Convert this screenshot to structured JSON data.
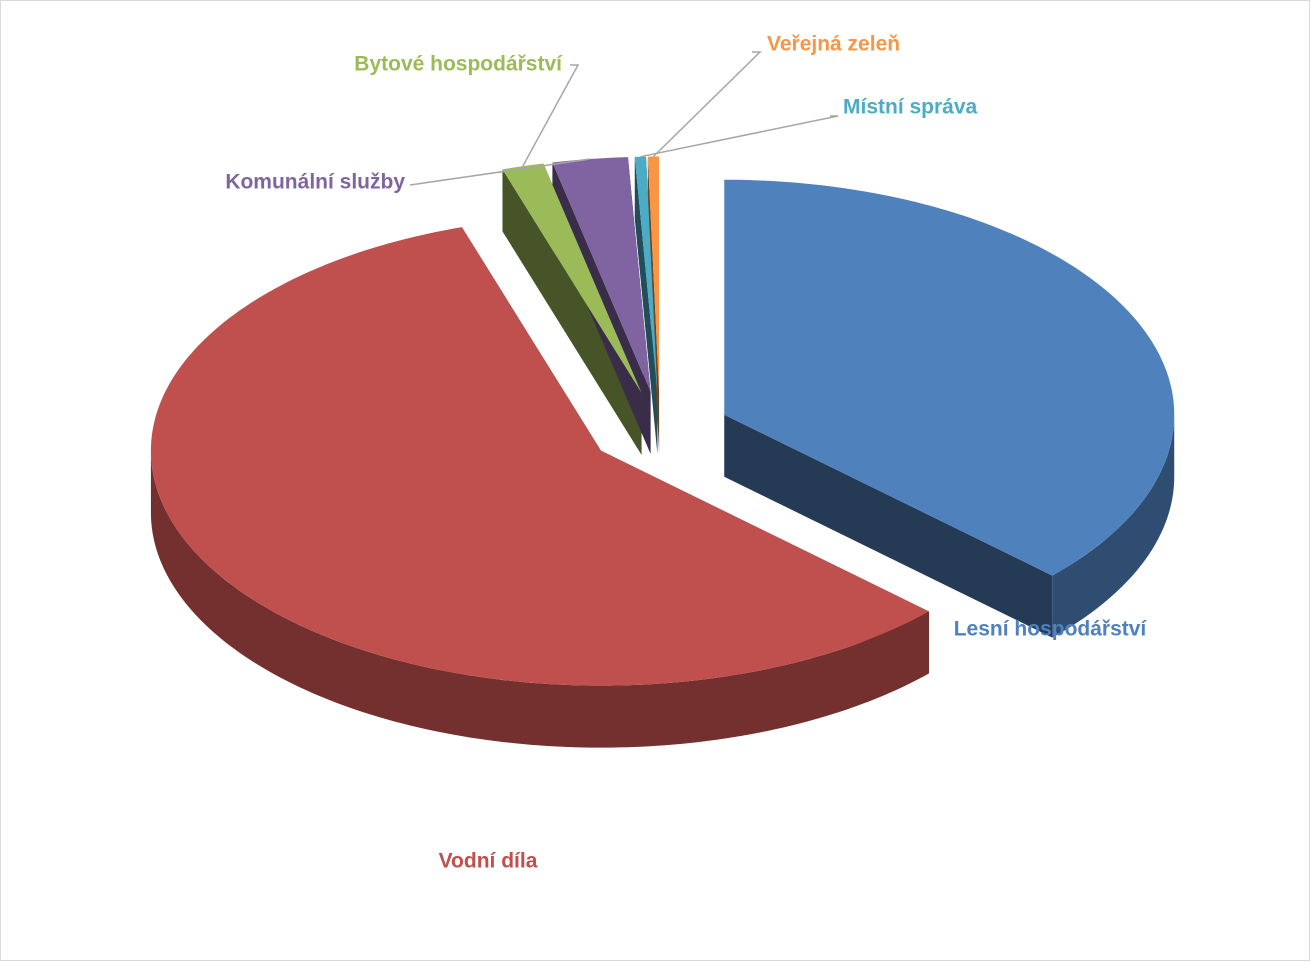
{
  "chart_data": {
    "type": "pie",
    "categories": [
      "Lesní hospodářství",
      "Vodní díla",
      "Bytové hospodářství",
      "Komunální služby",
      "Místní správa",
      "Veřejná zeleň"
    ],
    "values": [
      37,
      58,
      1.5,
      2.7,
      0.4,
      0.4
    ],
    "colors": [
      "#4f81bd",
      "#c0504d",
      "#9bbb59",
      "#8064a2",
      "#4bacc6",
      "#f79646"
    ]
  }
}
